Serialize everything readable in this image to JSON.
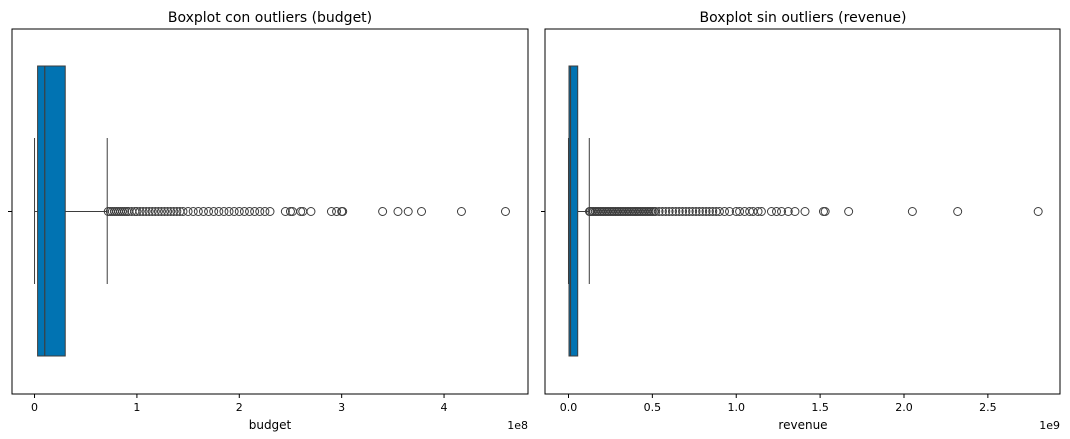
{
  "chart_data": [
    {
      "type": "boxplot",
      "title": "Boxplot con outliers (budget)",
      "xlabel": "budget",
      "ylabel": "",
      "axis_multiplier": "1e8",
      "xlim": [
        -0.22,
        4.82
      ],
      "xticks": [
        0,
        1,
        2,
        3,
        4
      ],
      "xtick_labels": [
        "0",
        "1",
        "2",
        "3",
        "4"
      ],
      "color": "#0173b2",
      "box": {
        "whisker_low": 0.0,
        "q1": 0.03,
        "median": 0.1,
        "q3": 0.3,
        "whisker_high": 0.71
      },
      "outliers": [
        0.72,
        0.74,
        0.76,
        0.78,
        0.8,
        0.82,
        0.84,
        0.86,
        0.88,
        0.9,
        0.92,
        0.95,
        0.98,
        1.0,
        1.03,
        1.06,
        1.09,
        1.12,
        1.15,
        1.18,
        1.21,
        1.24,
        1.27,
        1.3,
        1.33,
        1.36,
        1.39,
        1.42,
        1.45,
        1.5,
        1.55,
        1.6,
        1.65,
        1.7,
        1.75,
        1.8,
        1.85,
        1.9,
        1.95,
        2.0,
        2.05,
        2.1,
        2.15,
        2.2,
        2.25,
        2.3,
        2.45,
        2.5,
        2.52,
        2.6,
        2.62,
        2.7,
        2.9,
        2.95,
        3.0,
        3.01,
        3.4,
        3.55,
        3.65,
        3.78,
        4.17,
        4.6
      ]
    },
    {
      "type": "boxplot",
      "title": "Boxplot sin outliers (revenue)",
      "xlabel": "revenue",
      "ylabel": "",
      "axis_multiplier": "1e9",
      "xlim": [
        -0.14,
        2.93
      ],
      "xticks": [
        0.0,
        0.5,
        1.0,
        1.5,
        2.0,
        2.5
      ],
      "xtick_labels": [
        "0.0",
        "0.5",
        "1.0",
        "1.5",
        "2.0",
        "2.5"
      ],
      "color": "#0173b2",
      "box": {
        "whisker_low": 0.0,
        "q1": 0.003,
        "median": 0.012,
        "q3": 0.055,
        "whisker_high": 0.124
      },
      "outliers": [
        0.125,
        0.13,
        0.14,
        0.15,
        0.16,
        0.17,
        0.18,
        0.19,
        0.2,
        0.21,
        0.22,
        0.23,
        0.24,
        0.25,
        0.26,
        0.27,
        0.28,
        0.29,
        0.3,
        0.31,
        0.32,
        0.33,
        0.34,
        0.35,
        0.36,
        0.37,
        0.38,
        0.39,
        0.4,
        0.41,
        0.42,
        0.43,
        0.44,
        0.45,
        0.46,
        0.47,
        0.48,
        0.49,
        0.5,
        0.51,
        0.52,
        0.54,
        0.56,
        0.58,
        0.6,
        0.62,
        0.64,
        0.66,
        0.68,
        0.7,
        0.72,
        0.74,
        0.76,
        0.78,
        0.8,
        0.82,
        0.84,
        0.86,
        0.88,
        0.9,
        0.93,
        0.96,
        1.0,
        1.02,
        1.05,
        1.08,
        1.1,
        1.13,
        1.15,
        1.21,
        1.24,
        1.27,
        1.31,
        1.35,
        1.41,
        1.52,
        1.53,
        1.67,
        2.05,
        2.32,
        2.8
      ]
    }
  ]
}
